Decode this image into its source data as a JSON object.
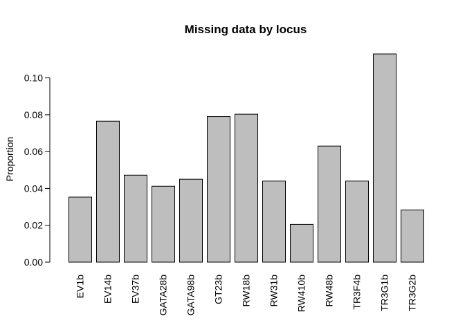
{
  "chart_data": {
    "type": "bar",
    "title": "Missing data by locus",
    "xlabel": "",
    "ylabel": "Proportion",
    "categories": [
      "EV1b",
      "EV14b",
      "EV37b",
      "GATA28b",
      "GATA98b",
      "GT23b",
      "RW18b",
      "RW31b",
      "RW410b",
      "RW48b",
      "TR3F4b",
      "TR3G1b",
      "TR3G2b"
    ],
    "values": [
      0.0353,
      0.0765,
      0.0472,
      0.0412,
      0.045,
      0.079,
      0.0803,
      0.044,
      0.0205,
      0.063,
      0.044,
      0.113,
      0.0283
    ],
    "yticks": [
      0.0,
      0.02,
      0.04,
      0.06,
      0.08,
      0.1
    ],
    "ytick_labels": [
      "0.00",
      "0.02",
      "0.04",
      "0.06",
      "0.08",
      "0.10"
    ],
    "ylim": [
      0,
      0.113
    ],
    "bar_color": "#bebebe",
    "grid": false,
    "legend": "none"
  }
}
